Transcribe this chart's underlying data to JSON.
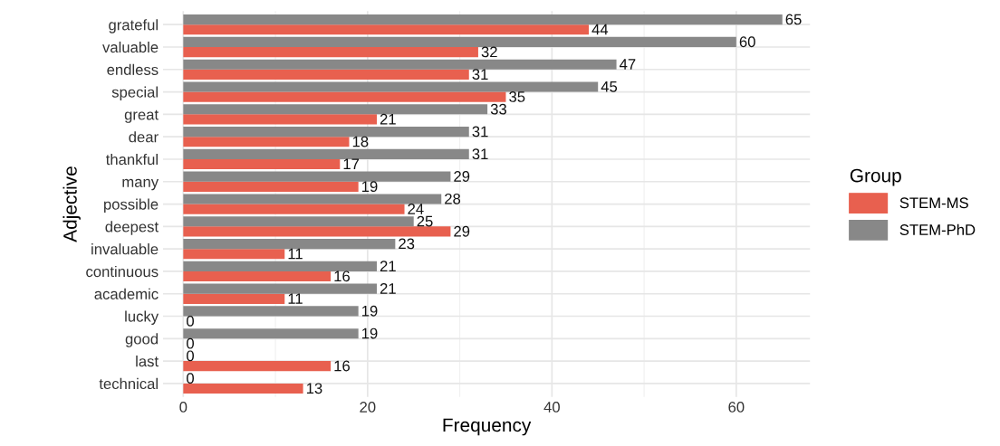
{
  "chart_data": {
    "type": "bar",
    "orientation": "horizontal",
    "xlabel": "Frequency",
    "ylabel": "Adjective",
    "legend_title": "Group",
    "legend": "right",
    "categories": [
      "grateful",
      "valuable",
      "endless",
      "special",
      "great",
      "dear",
      "thankful",
      "many",
      "possible",
      "deepest",
      "invaluable",
      "continuous",
      "academic",
      "lucky",
      "good",
      "last",
      "technical"
    ],
    "series": [
      {
        "name": "STEM-MS",
        "color": "#e8604f",
        "values": [
          44,
          32,
          31,
          35,
          21,
          18,
          17,
          19,
          24,
          29,
          11,
          16,
          11,
          0,
          0,
          16,
          13
        ]
      },
      {
        "name": "STEM-PhD",
        "color": "#888888",
        "values": [
          65,
          60,
          47,
          45,
          33,
          31,
          31,
          29,
          28,
          25,
          23,
          21,
          21,
          19,
          19,
          0,
          0
        ]
      }
    ],
    "xlim": [
      -2.2,
      68
    ],
    "xticks": [
      0,
      20,
      40,
      60
    ],
    "grid": true,
    "data_labels": true
  }
}
